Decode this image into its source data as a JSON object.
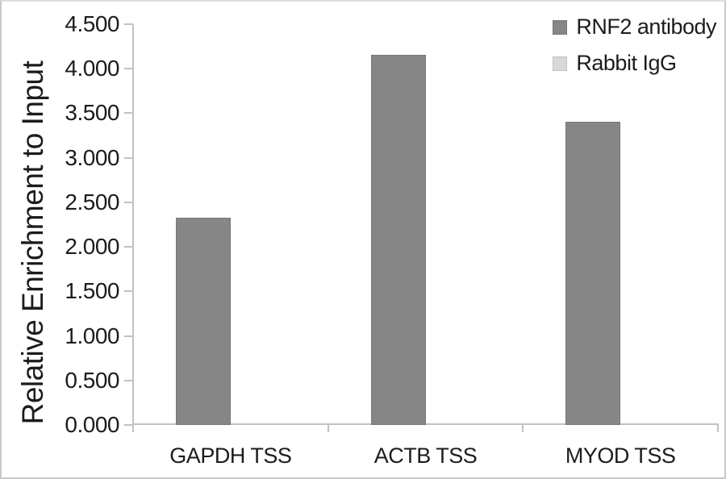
{
  "chart_data": {
    "type": "bar",
    "title": "",
    "xlabel": "",
    "ylabel": "Relative Enrichment to Input",
    "categories": [
      "GAPDH TSS",
      "ACTB TSS",
      "MYOD TSS"
    ],
    "series": [
      {
        "name": "RNF2 antibody",
        "color": "#868686",
        "values": [
          2.33,
          4.16,
          3.4
        ]
      },
      {
        "name": "Rabbit IgG",
        "color": "#d9d9d9",
        "values": [
          0.02,
          0.02,
          0.02
        ]
      }
    ],
    "ylim": [
      0,
      4.5
    ],
    "ytick_step": 0.5,
    "ytick_decimals": 3,
    "grid": "off",
    "legend_position": "top-right",
    "axis_color": "#c2c2c2",
    "text_color": "#1c1c1c",
    "background_color": "#ffffff"
  }
}
